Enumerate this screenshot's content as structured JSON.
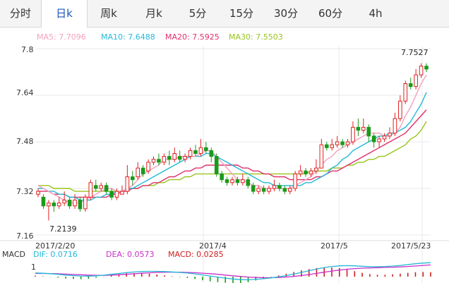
{
  "tabs": [
    {
      "label": "分时",
      "active": false
    },
    {
      "label": "日k",
      "active": true
    },
    {
      "label": "周k",
      "active": false
    },
    {
      "label": "月k",
      "active": false
    },
    {
      "label": "5分",
      "active": false
    },
    {
      "label": "15分",
      "active": false
    },
    {
      "label": "30分",
      "active": false
    },
    {
      "label": "60分",
      "active": false
    },
    {
      "label": "4h",
      "active": false
    }
  ],
  "ma_legend": [
    {
      "label": "MA5: 7.7096",
      "color": "#f4a0c0"
    },
    {
      "label": "MA10: 7.6488",
      "color": "#22b8d8"
    },
    {
      "label": "MA20: 7.5925",
      "color": "#e0306a"
    },
    {
      "label": "MA30: 7.5503",
      "color": "#99c41c"
    }
  ],
  "macd_legend": [
    {
      "label": "MACD",
      "color": "#333333"
    },
    {
      "label": "DIF: 0.0716",
      "color": "#22b8d8"
    },
    {
      "label": "DEA: 0.0573",
      "color": "#c82fc8"
    },
    {
      "label": "MACD: 0.0285",
      "color": "#d02020"
    }
  ],
  "colors": {
    "up": "#e02020",
    "down": "#1a9a1a",
    "grid": "#e8e8e8"
  },
  "chart_data": {
    "type": "candlestick",
    "ylim": [
      7.16,
      7.8
    ],
    "y_ticks": [
      "7.8",
      "7.64",
      "7.48",
      "7.32",
      "7.16"
    ],
    "x_ticks": [
      "2017/2/20",
      "2017/4",
      "2017/5",
      "2017/5/23"
    ],
    "annotations": {
      "high": "7.7527",
      "low": "7.2139"
    },
    "candles": [
      [
        7.3,
        7.31,
        7.32,
        7.29
      ],
      [
        7.29,
        7.26,
        7.3,
        7.25
      ],
      [
        7.26,
        7.27,
        7.28,
        7.21
      ],
      [
        7.27,
        7.26,
        7.28,
        7.24
      ],
      [
        7.26,
        7.27,
        7.29,
        7.25
      ],
      [
        7.27,
        7.28,
        7.31,
        7.26
      ],
      [
        7.28,
        7.26,
        7.29,
        7.25
      ],
      [
        7.26,
        7.28,
        7.3,
        7.25
      ],
      [
        7.28,
        7.25,
        7.29,
        7.24
      ],
      [
        7.25,
        7.29,
        7.3,
        7.24
      ],
      [
        7.29,
        7.34,
        7.35,
        7.28
      ],
      [
        7.33,
        7.32,
        7.35,
        7.31
      ],
      [
        7.32,
        7.33,
        7.34,
        7.31
      ],
      [
        7.33,
        7.31,
        7.34,
        7.3
      ],
      [
        7.31,
        7.29,
        7.32,
        7.28
      ],
      [
        7.29,
        7.31,
        7.32,
        7.28
      ],
      [
        7.3,
        7.31,
        7.33,
        7.3
      ],
      [
        7.31,
        7.36,
        7.4,
        7.3
      ],
      [
        7.36,
        7.35,
        7.38,
        7.33
      ],
      [
        7.36,
        7.39,
        7.41,
        7.35
      ],
      [
        7.39,
        7.37,
        7.4,
        7.36
      ],
      [
        7.38,
        7.41,
        7.42,
        7.37
      ],
      [
        7.41,
        7.42,
        7.43,
        7.4
      ],
      [
        7.42,
        7.41,
        7.44,
        7.4
      ],
      [
        7.41,
        7.43,
        7.44,
        7.4
      ],
      [
        7.43,
        7.42,
        7.45,
        7.4
      ],
      [
        7.42,
        7.44,
        7.46,
        7.41
      ],
      [
        7.43,
        7.42,
        7.45,
        7.41
      ],
      [
        7.42,
        7.43,
        7.44,
        7.41
      ],
      [
        7.43,
        7.45,
        7.46,
        7.42
      ],
      [
        7.45,
        7.44,
        7.47,
        7.43
      ],
      [
        7.44,
        7.46,
        7.49,
        7.43
      ],
      [
        7.46,
        7.45,
        7.48,
        7.44
      ],
      [
        7.45,
        7.43,
        7.46,
        7.41
      ],
      [
        7.43,
        7.37,
        7.44,
        7.36
      ],
      [
        7.37,
        7.35,
        7.38,
        7.34
      ],
      [
        7.35,
        7.34,
        7.36,
        7.33
      ],
      [
        7.34,
        7.35,
        7.36,
        7.33
      ],
      [
        7.35,
        7.34,
        7.36,
        7.33
      ],
      [
        7.34,
        7.35,
        7.37,
        7.33
      ],
      [
        7.35,
        7.33,
        7.36,
        7.32
      ],
      [
        7.33,
        7.31,
        7.34,
        7.3
      ],
      [
        7.31,
        7.32,
        7.33,
        7.3
      ],
      [
        7.32,
        7.31,
        7.33,
        7.3
      ],
      [
        7.31,
        7.32,
        7.33,
        7.3
      ],
      [
        7.32,
        7.33,
        7.35,
        7.31
      ],
      [
        7.33,
        7.32,
        7.34,
        7.31
      ],
      [
        7.32,
        7.31,
        7.33,
        7.3
      ],
      [
        7.31,
        7.32,
        7.33,
        7.3
      ],
      [
        7.32,
        7.37,
        7.38,
        7.31
      ],
      [
        7.37,
        7.38,
        7.4,
        7.36
      ],
      [
        7.38,
        7.37,
        7.39,
        7.36
      ],
      [
        7.37,
        7.38,
        7.39,
        7.36
      ],
      [
        7.38,
        7.39,
        7.42,
        7.37
      ],
      [
        7.39,
        7.47,
        7.49,
        7.39
      ],
      [
        7.47,
        7.46,
        7.48,
        7.45
      ],
      [
        7.46,
        7.47,
        7.49,
        7.45
      ],
      [
        7.47,
        7.48,
        7.5,
        7.46
      ],
      [
        7.48,
        7.47,
        7.49,
        7.46
      ],
      [
        7.47,
        7.48,
        7.49,
        7.46
      ],
      [
        7.48,
        7.53,
        7.55,
        7.47
      ],
      [
        7.53,
        7.52,
        7.56,
        7.5
      ],
      [
        7.52,
        7.53,
        7.56,
        7.51
      ],
      [
        7.53,
        7.5,
        7.54,
        7.48
      ],
      [
        7.5,
        7.48,
        7.51,
        7.46
      ],
      [
        7.48,
        7.49,
        7.5,
        7.46
      ],
      [
        7.49,
        7.5,
        7.51,
        7.48
      ],
      [
        7.5,
        7.51,
        7.53,
        7.49
      ],
      [
        7.51,
        7.56,
        7.58,
        7.5
      ],
      [
        7.56,
        7.62,
        7.64,
        7.55
      ],
      [
        7.62,
        7.68,
        7.69,
        7.61
      ],
      [
        7.68,
        7.67,
        7.7,
        7.66
      ],
      [
        7.67,
        7.71,
        7.73,
        7.66
      ],
      [
        7.71,
        7.74,
        7.75,
        7.7
      ],
      [
        7.74,
        7.73,
        7.75,
        7.72
      ]
    ],
    "ma5": [
      7.33,
      7.32,
      7.31,
      7.3,
      7.29,
      7.28,
      7.27,
      7.27,
      7.27,
      7.28,
      7.29,
      7.3,
      7.31,
      7.32,
      7.32,
      7.31,
      7.31,
      7.32,
      7.33,
      7.35,
      7.37,
      7.38,
      7.39,
      7.4,
      7.42,
      7.42,
      7.42,
      7.43,
      7.43,
      7.43,
      7.43,
      7.44,
      7.45,
      7.45,
      7.43,
      7.41,
      7.39,
      7.37,
      7.35,
      7.35,
      7.34,
      7.33,
      7.33,
      7.32,
      7.32,
      7.32,
      7.32,
      7.32,
      7.32,
      7.33,
      7.34,
      7.35,
      7.36,
      7.38,
      7.4,
      7.42,
      7.43,
      7.45,
      7.46,
      7.47,
      7.48,
      7.49,
      7.5,
      7.51,
      7.51,
      7.51,
      7.5,
      7.5,
      7.51,
      7.53,
      7.57,
      7.6,
      7.64,
      7.68,
      7.71
    ],
    "ma10": [
      7.32,
      7.32,
      7.31,
      7.31,
      7.3,
      7.3,
      7.29,
      7.29,
      7.28,
      7.28,
      7.28,
      7.29,
      7.29,
      7.3,
      7.3,
      7.31,
      7.31,
      7.32,
      7.32,
      7.33,
      7.34,
      7.35,
      7.36,
      7.37,
      7.38,
      7.39,
      7.4,
      7.41,
      7.42,
      7.43,
      7.43,
      7.43,
      7.44,
      7.44,
      7.43,
      7.42,
      7.41,
      7.4,
      7.39,
      7.38,
      7.37,
      7.36,
      7.35,
      7.34,
      7.34,
      7.33,
      7.33,
      7.33,
      7.33,
      7.33,
      7.33,
      7.34,
      7.34,
      7.35,
      7.36,
      7.37,
      7.39,
      7.4,
      7.42,
      7.43,
      7.45,
      7.46,
      7.47,
      7.48,
      7.49,
      7.5,
      7.5,
      7.51,
      7.51,
      7.52,
      7.53,
      7.55,
      7.58,
      7.61,
      7.65
    ],
    "ma20": [
      7.31,
      7.31,
      7.31,
      7.3,
      7.3,
      7.3,
      7.29,
      7.29,
      7.29,
      7.29,
      7.29,
      7.29,
      7.29,
      7.29,
      7.3,
      7.3,
      7.31,
      7.31,
      7.32,
      7.32,
      7.33,
      7.33,
      7.34,
      7.34,
      7.35,
      7.36,
      7.36,
      7.37,
      7.38,
      7.38,
      7.39,
      7.39,
      7.4,
      7.4,
      7.4,
      7.4,
      7.4,
      7.4,
      7.4,
      7.39,
      7.39,
      7.38,
      7.38,
      7.37,
      7.37,
      7.36,
      7.36,
      7.36,
      7.35,
      7.35,
      7.35,
      7.35,
      7.35,
      7.36,
      7.36,
      7.37,
      7.38,
      7.38,
      7.39,
      7.4,
      7.41,
      7.42,
      7.43,
      7.44,
      7.45,
      7.46,
      7.47,
      7.48,
      7.49,
      7.5,
      7.51,
      7.53,
      7.55,
      7.57,
      7.59
    ],
    "ma30": [
      7.33,
      7.33,
      7.33,
      7.32,
      7.32,
      7.32,
      7.32,
      7.31,
      7.31,
      7.31,
      7.31,
      7.31,
      7.31,
      7.31,
      7.31,
      7.31,
      7.31,
      7.32,
      7.32,
      7.32,
      7.33,
      7.33,
      7.33,
      7.34,
      7.34,
      7.35,
      7.35,
      7.35,
      7.36,
      7.36,
      7.37,
      7.37,
      7.37,
      7.37,
      7.37,
      7.37,
      7.37,
      7.37,
      7.37,
      7.37,
      7.37,
      7.37,
      7.37,
      7.37,
      7.37,
      7.37,
      7.37,
      7.37,
      7.37,
      7.37,
      7.37,
      7.37,
      7.38,
      7.38,
      7.38,
      7.38,
      7.39,
      7.39,
      7.39,
      7.4,
      7.4,
      7.41,
      7.41,
      7.42,
      7.42,
      7.43,
      7.43,
      7.44,
      7.45,
      7.46,
      7.47,
      7.49,
      7.5,
      7.52,
      7.55
    ],
    "macd": {
      "y_tick": "1",
      "ylim": [
        -0.6,
        1.6
      ],
      "dif": [
        0.35,
        0.32,
        0.28,
        0.22,
        0.15,
        0.1,
        0.06,
        0.05,
        0.08,
        0.14,
        0.22,
        0.3,
        0.38,
        0.44,
        0.48,
        0.5,
        0.5,
        0.48,
        0.45,
        0.4,
        0.34,
        0.26,
        0.16,
        0.06,
        -0.04,
        -0.14,
        -0.22,
        -0.28,
        -0.3,
        -0.26,
        -0.2,
        -0.12,
        -0.02,
        0.1,
        0.24,
        0.4,
        0.56,
        0.72,
        0.86,
        0.96,
        1.02,
        1.04,
        1.02,
        0.98,
        0.95,
        0.94,
        0.96,
        1.0,
        1.06,
        1.14,
        1.22,
        1.28,
        1.32
      ],
      "dea": [
        0.3,
        0.3,
        0.29,
        0.27,
        0.24,
        0.21,
        0.18,
        0.15,
        0.13,
        0.13,
        0.15,
        0.18,
        0.22,
        0.27,
        0.32,
        0.36,
        0.4,
        0.42,
        0.43,
        0.42,
        0.4,
        0.37,
        0.33,
        0.28,
        0.22,
        0.15,
        0.08,
        0.02,
        -0.04,
        -0.08,
        -0.1,
        -0.1,
        -0.08,
        -0.04,
        0.02,
        0.1,
        0.2,
        0.31,
        0.42,
        0.53,
        0.62,
        0.7,
        0.76,
        0.8,
        0.83,
        0.85,
        0.87,
        0.89,
        0.92,
        0.96,
        1.01,
        1.06,
        1.11
      ],
      "hist": [
        0.1,
        0.04,
        -0.02,
        -0.1,
        -0.18,
        -0.22,
        -0.24,
        -0.2,
        -0.1,
        0.02,
        0.14,
        0.24,
        0.32,
        0.34,
        0.32,
        0.28,
        0.2,
        0.12,
        0.04,
        -0.04,
        -0.12,
        -0.22,
        -0.34,
        -0.44,
        -0.52,
        -0.58,
        -0.6,
        -0.6,
        -0.52,
        -0.36,
        -0.2,
        -0.04,
        0.12,
        0.28,
        0.44,
        0.6,
        0.72,
        0.82,
        0.88,
        0.86,
        0.8,
        0.68,
        0.52,
        0.36,
        0.24,
        0.18,
        0.18,
        0.22,
        0.28,
        0.36,
        0.42,
        0.44,
        0.42
      ]
    }
  }
}
